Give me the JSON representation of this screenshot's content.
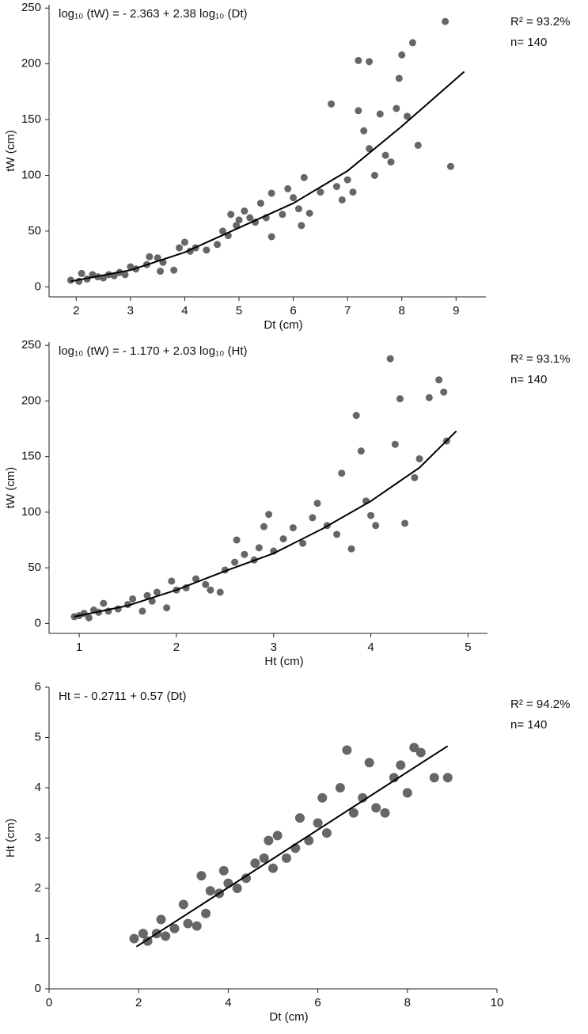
{
  "chart_data": [
    {
      "type": "scatter",
      "title": "log₁₀ (tW) = - 2.363 + 2.38 log₁₀ (Dt)",
      "annotations": [
        "R² = 93.2%",
        "n= 140"
      ],
      "x_label": "Dt (cm)",
      "y_label": "tW (cm)",
      "color": "#666666",
      "x": [
        1.9,
        2.05,
        2.1,
        2.2,
        2.3,
        2.4,
        2.5,
        2.6,
        2.7,
        2.8,
        2.9,
        3.0,
        3.1,
        3.3,
        3.35,
        3.5,
        3.55,
        3.6,
        3.8,
        3.9,
        4.0,
        4.1,
        4.2,
        4.4,
        4.6,
        4.7,
        4.8,
        4.85,
        4.95,
        5.0,
        5.1,
        5.2,
        5.3,
        5.4,
        5.5,
        5.6,
        5.6,
        5.8,
        5.9,
        6.0,
        6.1,
        6.15,
        6.2,
        6.3,
        6.5,
        6.7,
        6.8,
        6.9,
        7.0,
        7.1,
        7.2,
        7.2,
        7.3,
        7.4,
        7.4,
        7.5,
        7.6,
        7.7,
        7.8,
        7.9,
        7.95,
        8.0,
        8.1,
        8.2,
        8.3,
        8.8,
        8.9
      ],
      "values": [
        6,
        5,
        12,
        7,
        11,
        9,
        8,
        11,
        10,
        13,
        11,
        18,
        16,
        20,
        27,
        26,
        14,
        22,
        15,
        35,
        40,
        32,
        35,
        33,
        38,
        50,
        46,
        65,
        55,
        60,
        68,
        62,
        58,
        75,
        62,
        45,
        84,
        65,
        88,
        80,
        70,
        55,
        98,
        66,
        85,
        164,
        90,
        78,
        96,
        85,
        203,
        158,
        140,
        202,
        124,
        100,
        155,
        118,
        112,
        160,
        187,
        208,
        153,
        219,
        127,
        238,
        108
      ],
      "fit": {
        "x": [
          1.9,
          3,
          4,
          5,
          6,
          7,
          8,
          9.15
        ],
        "values": [
          5,
          15,
          31,
          53,
          75,
          104,
          144,
          193
        ]
      },
      "xlim": [
        1.5,
        9.55
      ],
      "ylim": [
        -9,
        253
      ],
      "xticks": [
        2,
        3,
        4,
        5,
        6,
        7,
        8,
        9
      ],
      "yticks": [
        0,
        50,
        100,
        150,
        200,
        250
      ]
    },
    {
      "type": "scatter",
      "title": "log₁₀ (tW) = - 1.170 + 2.03 log₁₀ (Ht)",
      "annotations": [
        "R² = 93.1%",
        "n= 140"
      ],
      "x_label": "Ht (cm)",
      "y_label": "tW (cm)",
      "color": "#666666",
      "x": [
        0.95,
        1.0,
        1.05,
        1.1,
        1.15,
        1.2,
        1.25,
        1.3,
        1.4,
        1.5,
        1.55,
        1.65,
        1.7,
        1.75,
        1.8,
        1.9,
        1.95,
        2.0,
        2.1,
        2.2,
        2.3,
        2.35,
        2.45,
        2.5,
        2.6,
        2.62,
        2.7,
        2.8,
        2.85,
        2.9,
        2.95,
        3.0,
        3.1,
        3.2,
        3.3,
        3.4,
        3.45,
        3.55,
        3.65,
        3.7,
        3.8,
        3.85,
        3.9,
        3.95,
        4.0,
        4.05,
        4.2,
        4.25,
        4.3,
        4.35,
        4.45,
        4.5,
        4.6,
        4.7,
        4.75,
        4.78
      ],
      "values": [
        6,
        7,
        9,
        5,
        12,
        10,
        18,
        11,
        13,
        17,
        22,
        11,
        25,
        20,
        28,
        14,
        38,
        30,
        32,
        40,
        35,
        30,
        28,
        48,
        55,
        75,
        62,
        57,
        68,
        87,
        98,
        65,
        76,
        86,
        72,
        95,
        108,
        88,
        80,
        135,
        67,
        187,
        155,
        110,
        97,
        88,
        238,
        161,
        202,
        90,
        131,
        148,
        203,
        219,
        208,
        164
      ],
      "fit": {
        "x": [
          0.95,
          1.5,
          2,
          2.5,
          3,
          3.5,
          4,
          4.5,
          4.88
        ],
        "values": [
          6,
          16,
          30,
          47,
          63,
          85,
          110,
          140,
          173
        ]
      },
      "xlim": [
        0.69,
        5.2
      ],
      "ylim": [
        -9,
        253
      ],
      "xticks": [
        1,
        2,
        3,
        4,
        5
      ],
      "yticks": [
        0,
        50,
        100,
        150,
        200,
        250
      ]
    },
    {
      "type": "scatter",
      "title": "Ht = - 0.2711 + 0.57 (Dt)",
      "annotations": [
        "R² = 94.2%",
        "n= 140"
      ],
      "x_label": "Dt (cm)",
      "y_label": "Ht (cm)",
      "color": "#666666",
      "x": [
        1.9,
        2.1,
        2.2,
        2.4,
        2.5,
        2.6,
        2.8,
        3.0,
        3.1,
        3.3,
        3.4,
        3.5,
        3.6,
        3.8,
        3.9,
        4.0,
        4.2,
        4.4,
        4.6,
        4.8,
        4.9,
        5.0,
        5.1,
        5.3,
        5.5,
        5.6,
        5.8,
        6.0,
        6.1,
        6.2,
        6.5,
        6.65,
        6.8,
        7.0,
        7.15,
        7.3,
        7.5,
        7.7,
        7.85,
        8.0,
        8.15,
        8.3,
        8.6,
        8.9
      ],
      "values": [
        1.0,
        1.1,
        0.95,
        1.1,
        1.38,
        1.05,
        1.2,
        1.68,
        1.3,
        1.25,
        2.25,
        1.5,
        1.95,
        1.9,
        2.35,
        2.1,
        2.0,
        2.2,
        2.5,
        2.6,
        2.95,
        2.4,
        3.05,
        2.6,
        2.8,
        3.4,
        2.95,
        3.3,
        3.8,
        3.1,
        4.0,
        4.75,
        3.5,
        3.8,
        4.5,
        3.6,
        3.5,
        4.2,
        4.45,
        3.9,
        4.8,
        4.7,
        4.2,
        4.2
      ],
      "fit": {
        "x": [
          1.95,
          8.9
        ],
        "values": [
          0.84,
          4.83
        ]
      },
      "xlim": [
        0,
        10
      ],
      "ylim": [
        0,
        6
      ],
      "xticks": [
        0,
        2,
        4,
        6,
        8,
        10
      ],
      "yticks": [
        0,
        1,
        2,
        3,
        4,
        5,
        6
      ]
    }
  ]
}
